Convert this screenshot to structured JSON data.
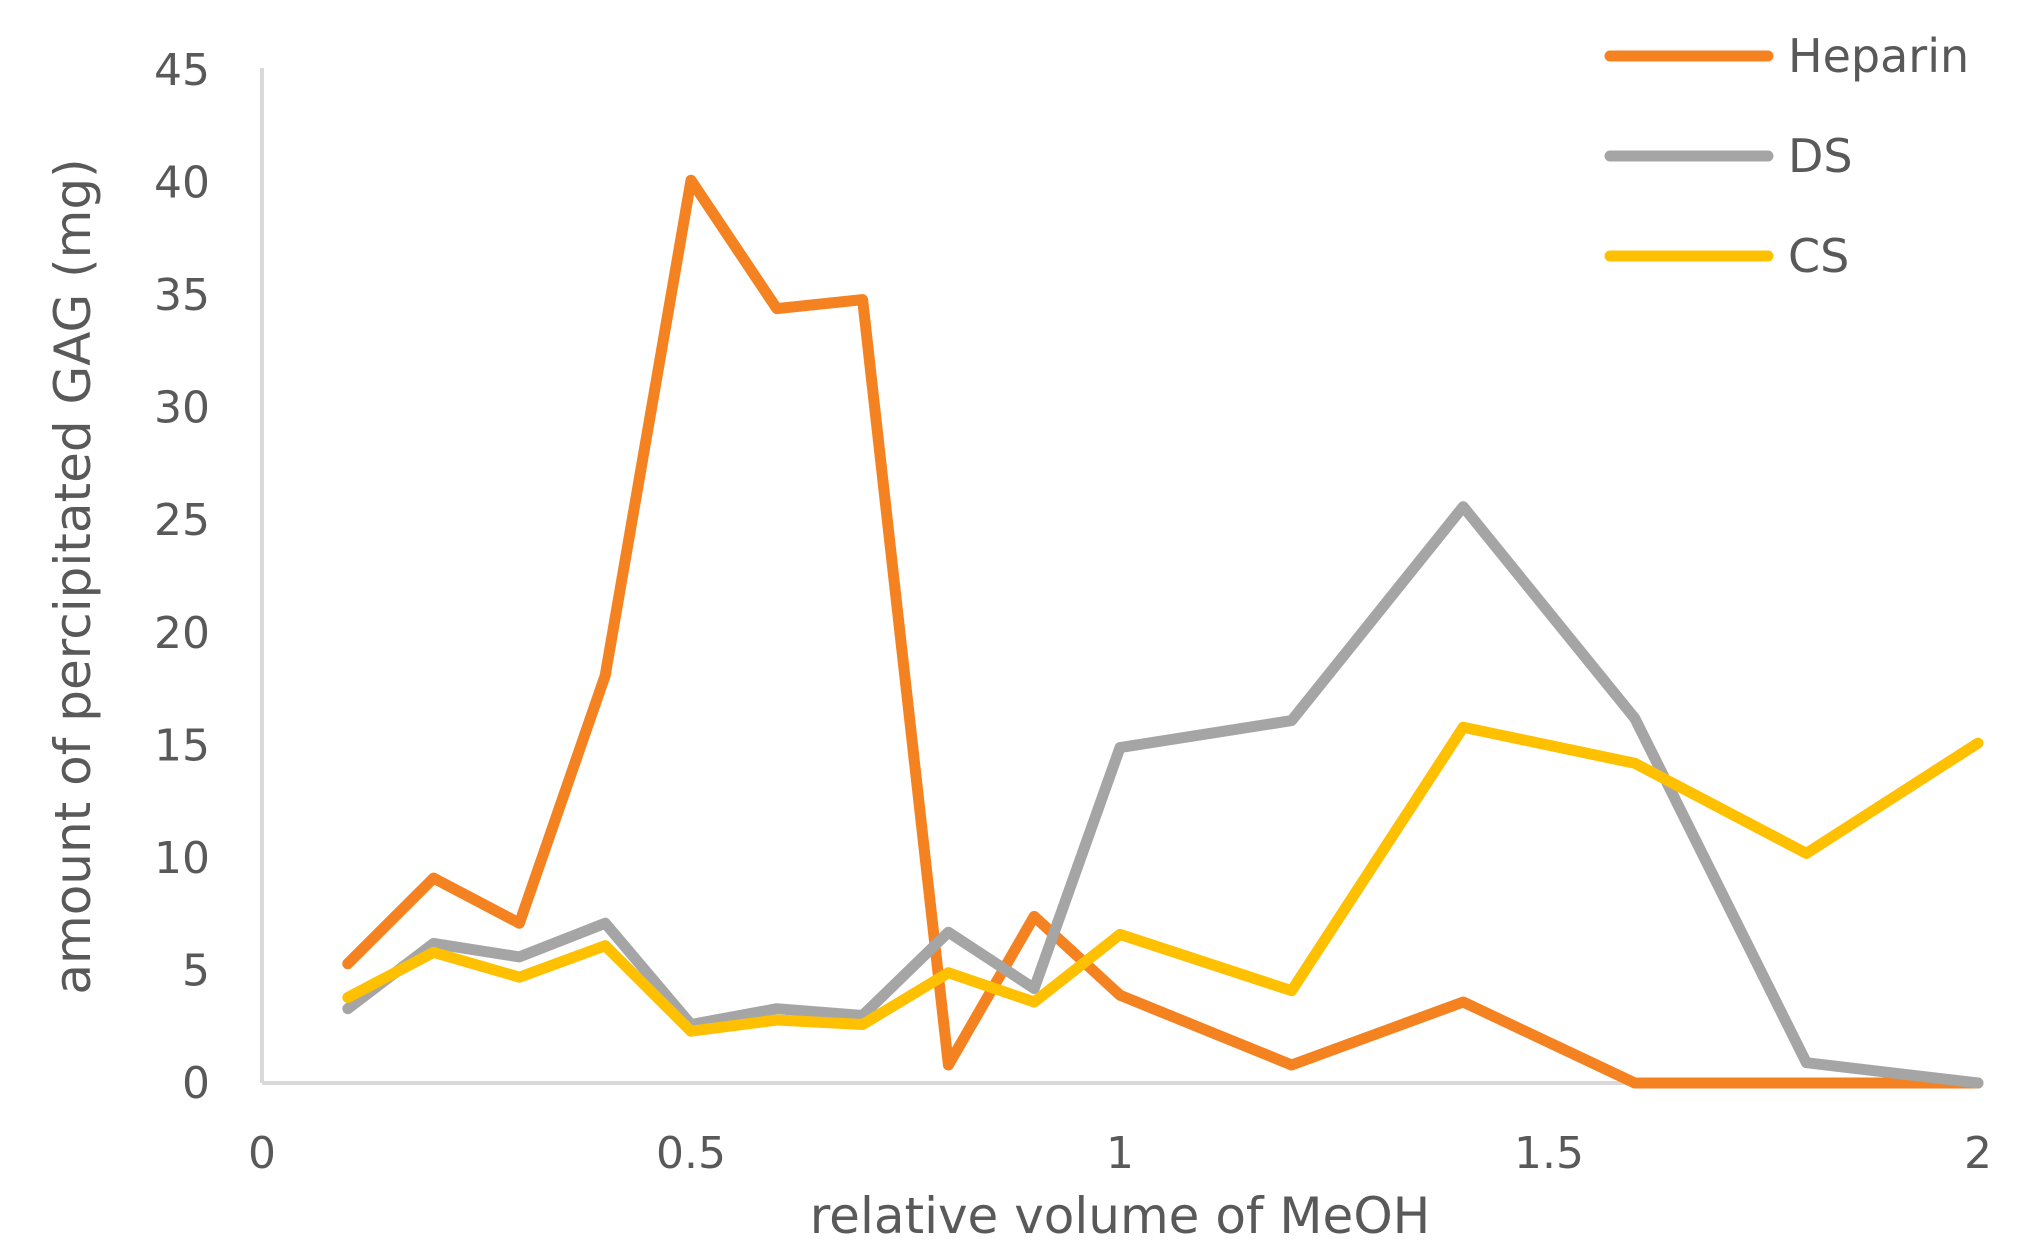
{
  "chart_data": {
    "type": "line",
    "title": "",
    "xlabel": "relative volume of MeOH",
    "ylabel": "amount of percipitated GAG (mg)",
    "xlim": [
      0,
      2
    ],
    "ylim": [
      0,
      45
    ],
    "xticks": [
      0,
      0.5,
      1,
      1.5,
      2
    ],
    "xtick_labels": [
      "0",
      "0.5",
      "1",
      "1.5",
      "2"
    ],
    "yticks": [
      0,
      5,
      10,
      15,
      20,
      25,
      30,
      35,
      40,
      45
    ],
    "ytick_labels": [
      "0",
      "5",
      "10",
      "15",
      "20",
      "25",
      "30",
      "35",
      "40",
      "45"
    ],
    "grid": false,
    "legend_position": "top-right",
    "series": [
      {
        "name": "Heparin",
        "color": "#F58220",
        "points": [
          [
            0.1,
            5.3
          ],
          [
            0.2,
            9.1
          ],
          [
            0.3,
            7.1
          ],
          [
            0.4,
            18.1
          ],
          [
            0.5,
            40.1
          ],
          [
            0.6,
            34.4
          ],
          [
            0.7,
            34.8
          ],
          [
            0.8,
            0.8
          ],
          [
            0.9,
            7.4
          ],
          [
            1.0,
            3.9
          ],
          [
            1.2,
            0.8
          ],
          [
            1.4,
            3.6
          ],
          [
            1.6,
            0.0
          ],
          [
            1.8,
            0.0
          ],
          [
            2.0,
            0.0
          ]
        ]
      },
      {
        "name": "DS",
        "color": "#A5A5A5",
        "points": [
          [
            0.1,
            3.3
          ],
          [
            0.2,
            6.2
          ],
          [
            0.3,
            5.6
          ],
          [
            0.4,
            7.1
          ],
          [
            0.5,
            2.6
          ],
          [
            0.6,
            3.3
          ],
          [
            0.7,
            3.0
          ],
          [
            0.8,
            6.7
          ],
          [
            0.9,
            4.2
          ],
          [
            1.0,
            14.9
          ],
          [
            1.2,
            16.1
          ],
          [
            1.4,
            25.6
          ],
          [
            1.6,
            16.2
          ],
          [
            1.8,
            0.9
          ],
          [
            2.0,
            0.0
          ]
        ]
      },
      {
        "name": "CS",
        "color": "#FFC000",
        "points": [
          [
            0.1,
            3.8
          ],
          [
            0.2,
            5.8
          ],
          [
            0.3,
            4.7
          ],
          [
            0.4,
            6.1
          ],
          [
            0.5,
            2.3
          ],
          [
            0.6,
            2.8
          ],
          [
            0.7,
            2.6
          ],
          [
            0.8,
            4.9
          ],
          [
            0.9,
            3.6
          ],
          [
            1.0,
            6.6
          ],
          [
            1.2,
            4.1
          ],
          [
            1.4,
            15.8
          ],
          [
            1.6,
            14.2
          ],
          [
            1.8,
            10.2
          ],
          [
            2.0,
            15.1
          ]
        ]
      }
    ]
  }
}
